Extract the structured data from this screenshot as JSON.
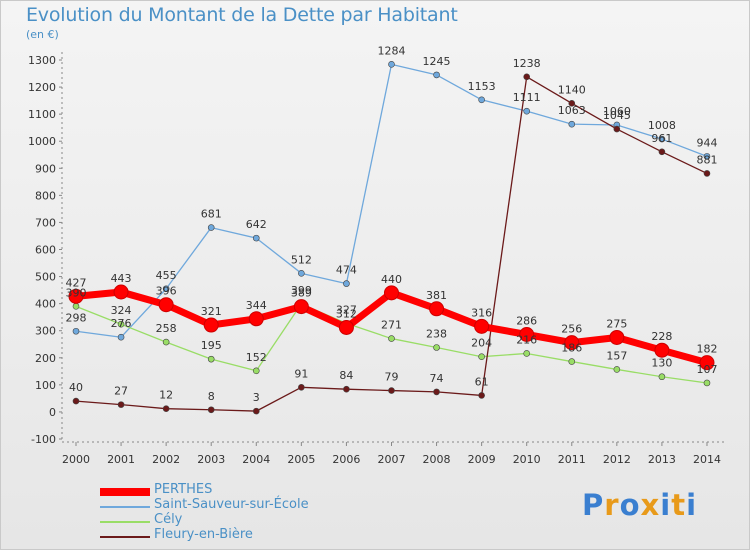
{
  "title": "Evolution du Montant de la Dette par Habitant",
  "subtitle": "(en €)",
  "logo": {
    "text": "Proxiti",
    "colors": [
      "#3a7fd0",
      "#e89a1a",
      "#3a7fd0",
      "#e89a1a",
      "#3a7fd0",
      "#e89a1a",
      "#3a7fd0"
    ]
  },
  "chart_data": {
    "type": "line",
    "title": "Evolution du Montant de la Dette par Habitant",
    "ylabel": "(en €)",
    "xlabel": "",
    "ylim": [
      -100,
      1300
    ],
    "yticks": [
      -100,
      0,
      100,
      200,
      300,
      400,
      500,
      600,
      700,
      800,
      900,
      1000,
      1100,
      1200,
      1300
    ],
    "grid": false,
    "legend_position": "bottom-left",
    "categories": [
      "2000",
      "2001",
      "2002",
      "2003",
      "2004",
      "2005",
      "2006",
      "2007",
      "2008",
      "2009",
      "2010",
      "2011",
      "2012",
      "2013",
      "2014"
    ],
    "series": [
      {
        "name": "PERTHES",
        "color": "#ff0000",
        "values": [
          427,
          443,
          396,
          321,
          344,
          389,
          312,
          440,
          381,
          316,
          286,
          256,
          275,
          228,
          182
        ]
      },
      {
        "name": "Saint-Sauveur-sur-École",
        "color": "#6fa8dc",
        "values": [
          298,
          276,
          455,
          681,
          642,
          512,
          474,
          1284,
          1245,
          1153,
          1111,
          1063,
          1060,
          1008,
          944
        ]
      },
      {
        "name": "Cély",
        "color": "#99dd66",
        "values": [
          390,
          324,
          258,
          195,
          152,
          399,
          327,
          271,
          238,
          204,
          216,
          186,
          157,
          130,
          107
        ]
      },
      {
        "name": "Fleury-en-Bière",
        "color": "#6b1a1a",
        "values": [
          40,
          27,
          12,
          8,
          3,
          91,
          84,
          79,
          74,
          61,
          1238,
          1140,
          1045,
          961,
          881
        ]
      }
    ]
  }
}
